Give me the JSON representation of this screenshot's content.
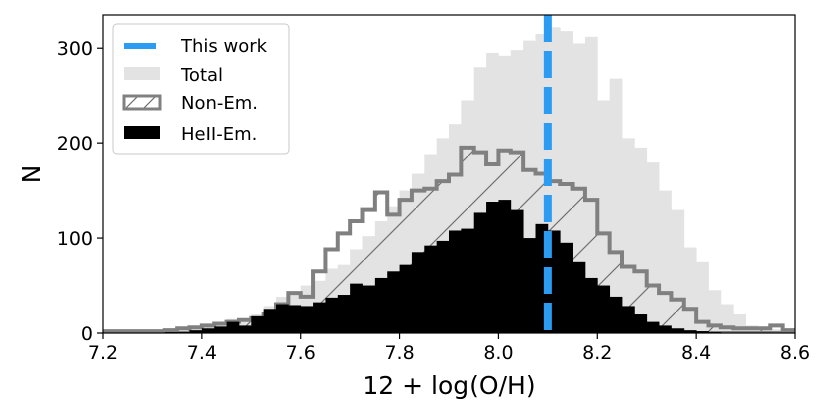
{
  "chart_data": {
    "type": "histogram",
    "xlabel": "12 + log(O/H)",
    "ylabel": "N",
    "xlim": [
      7.2,
      8.6
    ],
    "ylim": [
      0,
      335
    ],
    "xticks": [
      "7.2",
      "7.4",
      "7.6",
      "7.8",
      "8.0",
      "8.2",
      "8.4",
      "8.6"
    ],
    "yticks": [
      "0",
      "100",
      "200",
      "300"
    ],
    "grid": false,
    "legend_position": "top-left",
    "bin_width": 0.025,
    "bin_start": 7.2,
    "series": [
      {
        "name": "Total",
        "style": "filled",
        "color": "#e3e3e3",
        "values": [
          3,
          3,
          3,
          3,
          3,
          3,
          5,
          5,
          10,
          10,
          15,
          15,
          20,
          28,
          38,
          43,
          50,
          55,
          68,
          72,
          88,
          102,
          118,
          133,
          150,
          168,
          188,
          205,
          220,
          245,
          280,
          295,
          292,
          298,
          308,
          315,
          322,
          318,
          305,
          312,
          245,
          268,
          205,
          195,
          180,
          150,
          130,
          90,
          75,
          45,
          30,
          20,
          8,
          6,
          4,
          3
        ]
      },
      {
        "name": "Non-Em.",
        "style": "step-hatched",
        "color": "#808080",
        "values": [
          2,
          2,
          2,
          2,
          2,
          3,
          5,
          6,
          8,
          10,
          12,
          14,
          16,
          20,
          30,
          42,
          38,
          65,
          88,
          105,
          118,
          130,
          148,
          125,
          140,
          150,
          152,
          160,
          167,
          195,
          190,
          178,
          192,
          190,
          172,
          168,
          160,
          157,
          152,
          140,
          105,
          85,
          70,
          65,
          50,
          42,
          35,
          25,
          12,
          8,
          6,
          5,
          5,
          5,
          8,
          3
        ]
      },
      {
        "name": "HeII-Em.",
        "style": "filled",
        "color": "#000000",
        "values": [
          0,
          0,
          0,
          0,
          0,
          1,
          1,
          3,
          5,
          7,
          12,
          8,
          18,
          25,
          30,
          29,
          28,
          32,
          37,
          40,
          52,
          50,
          58,
          65,
          72,
          85,
          92,
          97,
          108,
          110,
          127,
          138,
          140,
          130,
          100,
          115,
          108,
          95,
          75,
          58,
          50,
          38,
          28,
          20,
          12,
          8,
          5,
          3,
          2,
          1,
          0,
          0,
          0,
          0,
          0,
          0
        ]
      },
      {
        "name": "This work",
        "style": "vertical-dashed-line",
        "color": "#2b9cf2",
        "x": 8.1
      }
    ],
    "legend": [
      "This work",
      "Total",
      "Non-Em.",
      "HeII-Em."
    ]
  }
}
